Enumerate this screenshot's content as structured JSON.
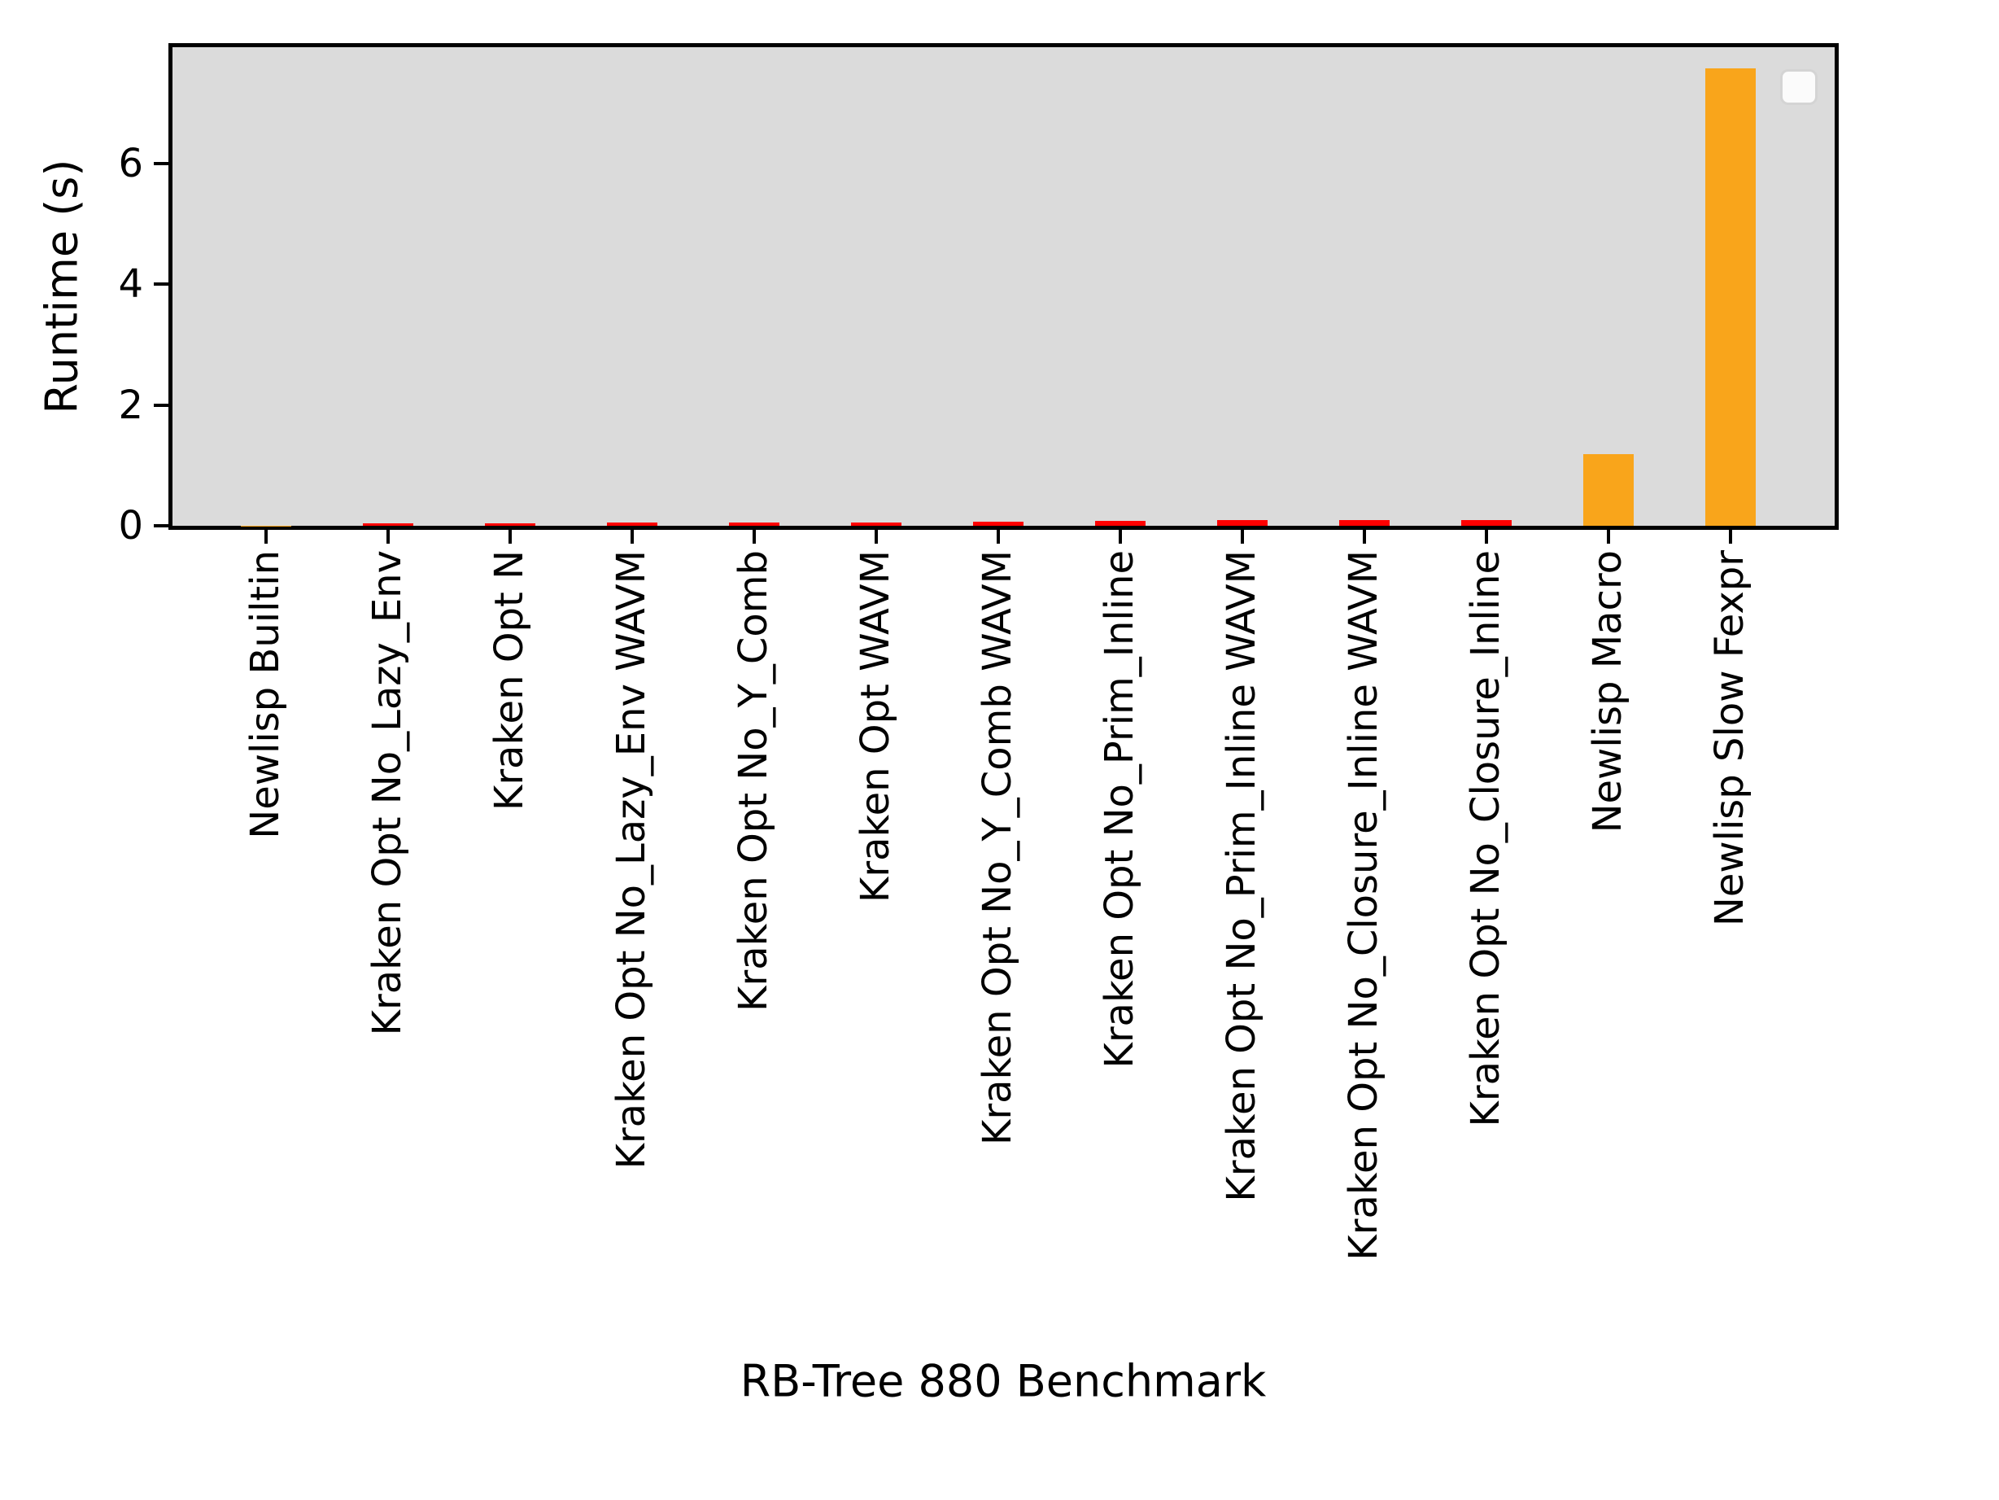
{
  "chart_data": {
    "type": "bar",
    "title": "",
    "xlabel": "RB-Tree 880 Benchmark",
    "ylabel": "Runtime (s)",
    "categories": [
      "Newlisp Builtin",
      "Kraken Opt No_Lazy_Env",
      "Kraken Opt N",
      "Kraken Opt No_Lazy_Env WAVM",
      "Kraken Opt No_Y_Comb",
      "Kraken Opt WAVM",
      "Kraken Opt No_Y_Comb WAVM",
      "Kraken Opt No_Prim_Inline",
      "Kraken Opt No_Prim_Inline WAVM",
      "Kraken Opt No_Closure_Inline WAVM",
      "Kraken Opt No_Closure_Inline",
      "Newlisp Macro",
      "Newlisp Slow Fexpr"
    ],
    "values": [
      0.005,
      0.04,
      0.04,
      0.05,
      0.06,
      0.06,
      0.07,
      0.085,
      0.095,
      0.095,
      0.1,
      1.19,
      7.57
    ],
    "bar_colors": [
      "#f9a51b",
      "#ff0000",
      "#ff0000",
      "#ff0000",
      "#ff0000",
      "#ff0000",
      "#ff0000",
      "#ff0000",
      "#ff0000",
      "#ff0000",
      "#ff0000",
      "#f9a51b",
      "#f9a51b"
    ],
    "yticks": [
      0,
      2,
      4,
      6
    ],
    "ytick_labels": [
      "0",
      "2",
      "4",
      "6"
    ],
    "ylim": [
      0,
      7.92
    ],
    "grid": "off",
    "legend": {
      "visible": true,
      "entries": [],
      "position": "upper-right"
    },
    "plot_background": "#dbdbdb",
    "accent_colors": {
      "kraken_red": "#ff0000",
      "newlisp_orange": "#f9a51b"
    }
  }
}
